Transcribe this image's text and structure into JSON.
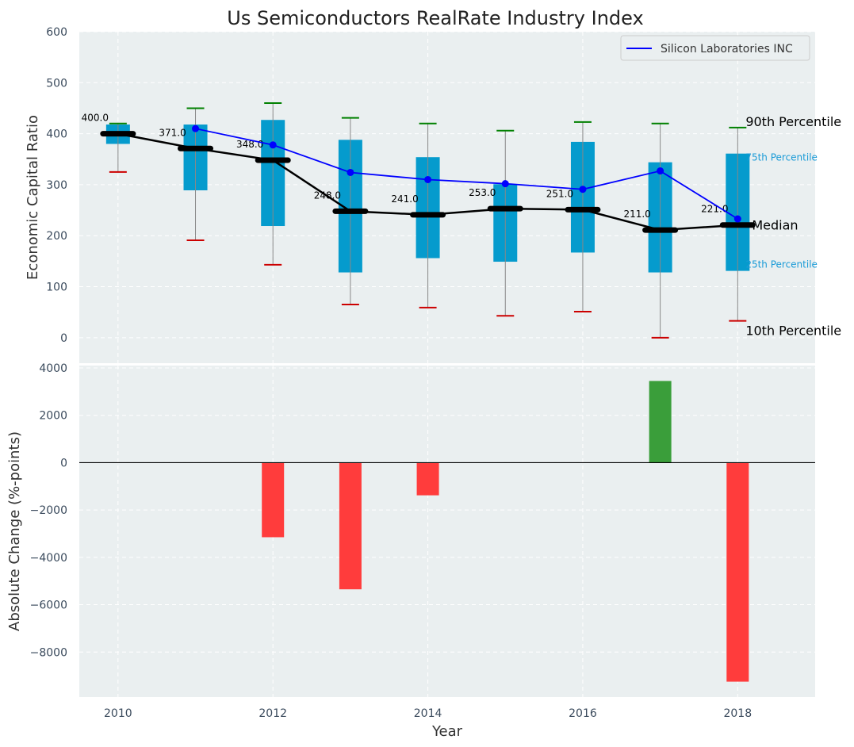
{
  "chart_data": [
    {
      "panel": "top",
      "type": "box",
      "title": "Us Semiconductors RealRate Industry Index",
      "ylabel": "Economic Capital Ratio",
      "xlabel": "",
      "ylim": [
        -50,
        600
      ],
      "yticks": [
        0,
        100,
        200,
        300,
        400,
        500,
        600
      ],
      "grid": true,
      "legend": {
        "position": "top-right",
        "entries": [
          "Silicon Laboratories INC"
        ]
      },
      "colors": {
        "box": "#0099cc",
        "median": "#000000",
        "company": "#0000ff",
        "p90": "#008000",
        "p10": "#cc0000",
        "whisker": "#888888",
        "background": "#eaeff0"
      },
      "years": [
        2010,
        2011,
        2012,
        2013,
        2014,
        2015,
        2016,
        2017,
        2018
      ],
      "p10": [
        325,
        191,
        143,
        65,
        59,
        43,
        51,
        0,
        33
      ],
      "q25": [
        380,
        289,
        219,
        128,
        156,
        149,
        167,
        128,
        131
      ],
      "median": [
        400,
        371,
        348,
        248,
        241,
        253,
        251,
        211,
        221
      ],
      "q75": [
        418,
        418,
        427,
        388,
        354,
        301,
        384,
        344,
        361
      ],
      "p90": [
        420,
        450,
        460,
        431,
        420,
        406,
        423,
        420,
        412
      ],
      "median_labels": [
        "400.0",
        "371.0",
        "348.0",
        "248.0",
        "241.0",
        "253.0",
        "251.0",
        "211.0",
        "221.0"
      ],
      "series": [
        {
          "name": "Silicon Laboratories INC",
          "x": [
            2011,
            2012,
            2013,
            2014,
            2015,
            2016,
            2017,
            2018
          ],
          "values": [
            410,
            378,
            324,
            310,
            302,
            291,
            327,
            233
          ]
        }
      ],
      "annotations": {
        "p90": "90th Percentile",
        "q75": "75th Percentile",
        "median": "Median",
        "q25": "25th Percentile",
        "p10": "10th Percentile"
      }
    },
    {
      "panel": "bottom",
      "type": "bar",
      "ylabel": "Absolute Change (%-points)",
      "xlabel": "Year",
      "ylim": [
        -9900,
        4100
      ],
      "yticks": [
        -8000,
        -6000,
        -4000,
        -2000,
        0,
        2000,
        4000
      ],
      "xlim": [
        2009.5,
        2019
      ],
      "xticks": [
        2010,
        2012,
        2014,
        2016,
        2018
      ],
      "grid": true,
      "colors": {
        "positive": "#3a9e3a",
        "negative": "#ff3c3c"
      },
      "x": [
        2012,
        2013,
        2014,
        2017,
        2018
      ],
      "values": [
        -3150,
        -5350,
        -1380,
        3450,
        -9250
      ]
    }
  ]
}
